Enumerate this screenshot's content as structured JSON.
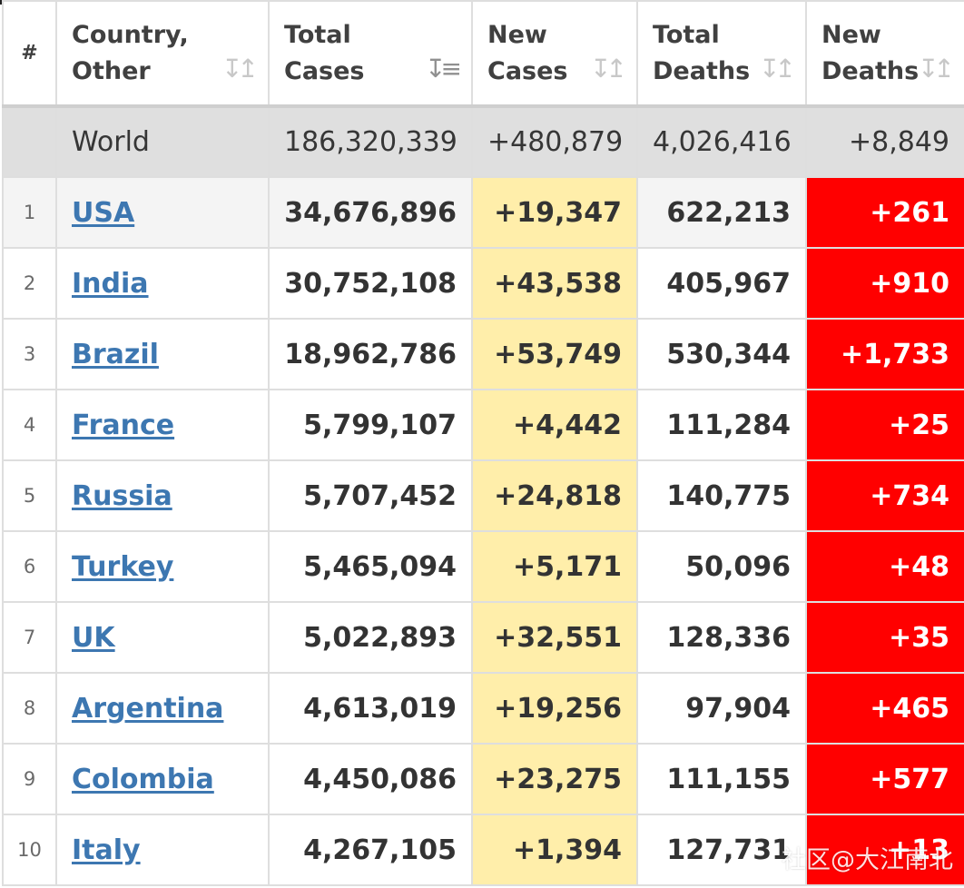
{
  "header": {
    "num": "#",
    "country_line1": "Country,",
    "country_line2": "Other",
    "total_cases_line1": "Total",
    "total_cases_line2": "Cases",
    "new_cases_line1": "New",
    "new_cases_line2": "Cases",
    "total_deaths_line1": "Total",
    "total_deaths_line2": "Deaths",
    "new_deaths_line1": "New",
    "new_deaths_line2": "Deaths"
  },
  "sort": {
    "inactive_glyph": "↧↥",
    "active_glyph": "↧≡",
    "active_column": "Total Cases"
  },
  "world": {
    "country": "World",
    "total_cases": "186,320,339",
    "new_cases": "+480,879",
    "total_deaths": "4,026,416",
    "new_deaths": "+8,849"
  },
  "rows": [
    {
      "num": "1",
      "country": "USA",
      "total_cases": "34,676,896",
      "new_cases": "+19,347",
      "total_deaths": "622,213",
      "new_deaths": "+261"
    },
    {
      "num": "2",
      "country": "India",
      "total_cases": "30,752,108",
      "new_cases": "+43,538",
      "total_deaths": "405,967",
      "new_deaths": "+910"
    },
    {
      "num": "3",
      "country": "Brazil",
      "total_cases": "18,962,786",
      "new_cases": "+53,749",
      "total_deaths": "530,344",
      "new_deaths": "+1,733"
    },
    {
      "num": "4",
      "country": "France",
      "total_cases": "5,799,107",
      "new_cases": "+4,442",
      "total_deaths": "111,284",
      "new_deaths": "+25"
    },
    {
      "num": "5",
      "country": "Russia",
      "total_cases": "5,707,452",
      "new_cases": "+24,818",
      "total_deaths": "140,775",
      "new_deaths": "+734"
    },
    {
      "num": "6",
      "country": "Turkey",
      "total_cases": "5,465,094",
      "new_cases": "+5,171",
      "total_deaths": "50,096",
      "new_deaths": "+48"
    },
    {
      "num": "7",
      "country": "UK",
      "total_cases": "5,022,893",
      "new_cases": "+32,551",
      "total_deaths": "128,336",
      "new_deaths": "+35"
    },
    {
      "num": "8",
      "country": "Argentina",
      "total_cases": "4,613,019",
      "new_cases": "+19,256",
      "total_deaths": "97,904",
      "new_deaths": "+465"
    },
    {
      "num": "9",
      "country": "Colombia",
      "total_cases": "4,450,086",
      "new_cases": "+23,275",
      "total_deaths": "111,155",
      "new_deaths": "+577"
    },
    {
      "num": "10",
      "country": "Italy",
      "total_cases": "4,267,105",
      "new_cases": "+1,394",
      "total_deaths": "127,731",
      "new_deaths": "+13"
    }
  ],
  "watermark": "社区@大江南北",
  "colors": {
    "new_cases_bg": "#ffeeaa",
    "new_deaths_bg": "#ff0000",
    "link": "#3d77b1",
    "world_row_bg": "#dfdfdf"
  }
}
